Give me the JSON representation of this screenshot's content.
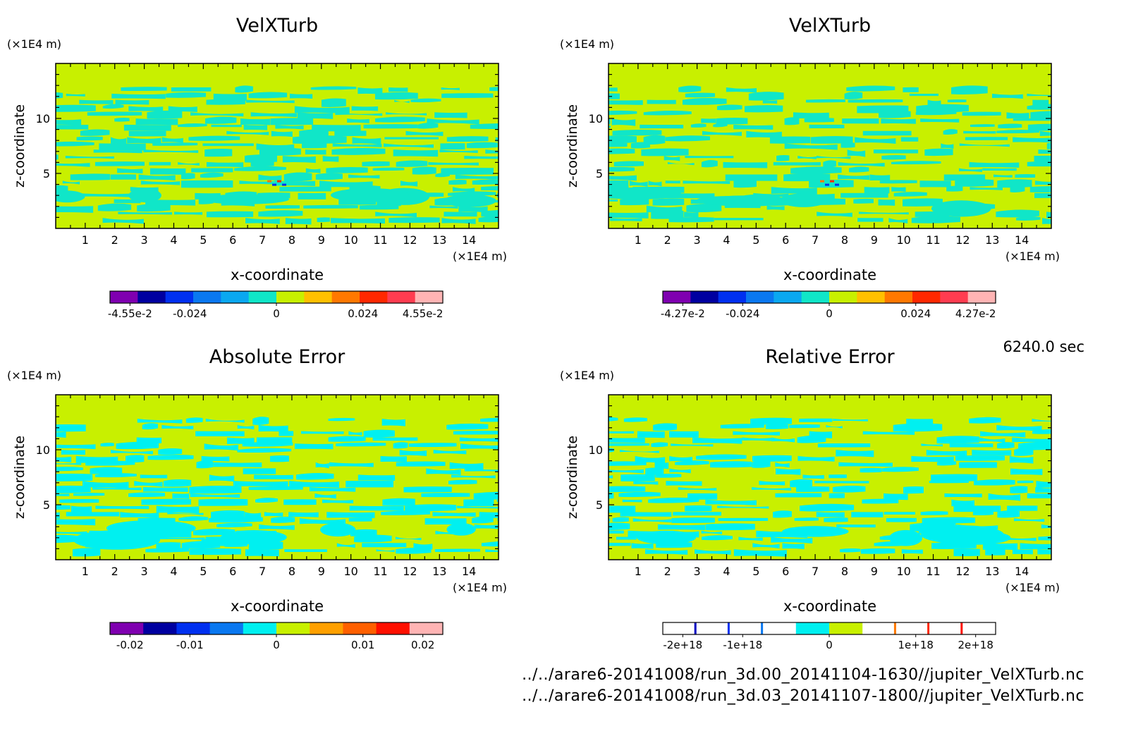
{
  "time_label": "6240.0 sec",
  "files": [
    "../../arare6-20141008/run_3d.00_20141104-1630//jupiter_VelXTurb.nc",
    "../../arare6-20141008/run_3d.03_20141107-1800//jupiter_VelXTurb.nc"
  ],
  "colors": {
    "field_background": "#c8f000",
    "field_pattern": "#10e6c8",
    "error_pattern": "#00f0f0"
  },
  "chart_data": [
    {
      "type": "heatmap",
      "title": "VelXTurb",
      "xlabel": "x-coordinate",
      "ylabel": "z-coordinate",
      "x_unit": "(×1E4 m)",
      "z_unit": "(×1E4 m)",
      "xlim": [
        0,
        15
      ],
      "zlim": [
        0,
        15
      ],
      "x_ticks": [
        "1",
        "2",
        "3",
        "4",
        "5",
        "6",
        "7",
        "8",
        "9",
        "10",
        "11",
        "12",
        "13",
        "14"
      ],
      "z_ticks": [
        "5",
        "10"
      ],
      "colorbar": {
        "colors": [
          "#7f00b0",
          "#0000a0",
          "#0030f0",
          "#0a78f0",
          "#0aa8f0",
          "#10e6c8",
          "#c8f000",
          "#ffc000",
          "#ff7800",
          "#ff2800",
          "#ff3c50",
          "#ffb4b4"
        ],
        "ticks": [
          "-4.55e-2",
          "-0.024",
          "0",
          "0.024",
          "4.55e-2"
        ]
      }
    },
    {
      "type": "heatmap",
      "title": "VelXTurb",
      "xlabel": "x-coordinate",
      "ylabel": "z-coordinate",
      "x_unit": "(×1E4 m)",
      "z_unit": "(×1E4 m)",
      "xlim": [
        0,
        15
      ],
      "zlim": [
        0,
        15
      ],
      "x_ticks": [
        "1",
        "2",
        "3",
        "4",
        "5",
        "6",
        "7",
        "8",
        "9",
        "10",
        "11",
        "12",
        "13",
        "14"
      ],
      "z_ticks": [
        "5",
        "10"
      ],
      "colorbar": {
        "colors": [
          "#7f00b0",
          "#0000a0",
          "#0030f0",
          "#0a78f0",
          "#0aa8f0",
          "#10e6c8",
          "#c8f000",
          "#ffc000",
          "#ff7800",
          "#ff2800",
          "#ff3c50",
          "#ffb4b4"
        ],
        "ticks": [
          "-4.27e-2",
          "-0.024",
          "0",
          "0.024",
          "4.27e-2"
        ]
      }
    },
    {
      "type": "heatmap",
      "title": "Absolute Error",
      "xlabel": "x-coordinate",
      "ylabel": "z-coordinate",
      "x_unit": "(×1E4 m)",
      "z_unit": "(×1E4 m)",
      "xlim": [
        0,
        15
      ],
      "zlim": [
        0,
        15
      ],
      "x_ticks": [
        "1",
        "2",
        "3",
        "4",
        "5",
        "6",
        "7",
        "8",
        "9",
        "10",
        "11",
        "12",
        "13",
        "14"
      ],
      "z_ticks": [
        "5",
        "10"
      ],
      "colorbar": {
        "colors": [
          "#7f00b0",
          "#0000a0",
          "#0030f0",
          "#0a78f0",
          "#00f0f0",
          "#c8f000",
          "#ffa000",
          "#ff6000",
          "#ff1000",
          "#ffb4b4"
        ],
        "ticks": [
          "-0.02",
          "-0.01",
          "0",
          "0.01",
          "0.02"
        ]
      }
    },
    {
      "type": "heatmap",
      "title": "Relative Error",
      "xlabel": "x-coordinate",
      "ylabel": "z-coordinate",
      "x_unit": "(×1E4 m)",
      "z_unit": "(×1E4 m)",
      "xlim": [
        0,
        15
      ],
      "zlim": [
        0,
        15
      ],
      "x_ticks": [
        "1",
        "2",
        "3",
        "4",
        "5",
        "6",
        "7",
        "8",
        "9",
        "10",
        "11",
        "12",
        "13",
        "14"
      ],
      "z_ticks": [
        "5",
        "10"
      ],
      "colorbar": {
        "colors": [
          "#ffffff",
          "#ffffff",
          "#ffffff",
          "#ffffff",
          "#00f0f0",
          "#c8f000",
          "#ffffff",
          "#ffffff",
          "#ffffff",
          "#ffffff"
        ],
        "ticks": [
          "-2e+18",
          "-1e+18",
          "0",
          "1e+18",
          "2e+18"
        ]
      }
    }
  ]
}
